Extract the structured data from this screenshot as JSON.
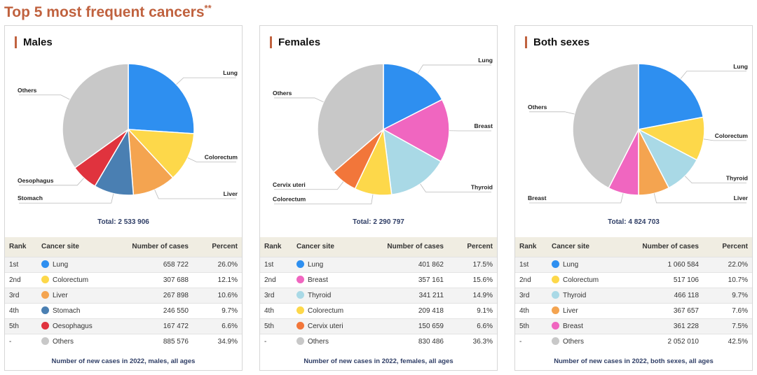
{
  "page": {
    "title": "Top 5 most frequent cancers",
    "title_mark": "**"
  },
  "table_headers": {
    "rank": "Rank",
    "site": "Cancer site",
    "cases": "Number of cases",
    "percent": "Percent"
  },
  "chart_data": [
    {
      "type": "pie",
      "title": "Males",
      "total_label": "Total: 2 533 906",
      "caption": "Number of new cases in 2022, males, all ages",
      "slices": [
        {
          "rank": "1st",
          "site": "Lung",
          "cases": "658 722",
          "percent": "26.0%",
          "value": 26.0,
          "color": "#2e8ff0"
        },
        {
          "rank": "2nd",
          "site": "Colorectum",
          "cases": "307 688",
          "percent": "12.1%",
          "value": 12.1,
          "color": "#fdd84a"
        },
        {
          "rank": "3rd",
          "site": "Liver",
          "cases": "267 898",
          "percent": "10.6%",
          "value": 10.6,
          "color": "#f4a450"
        },
        {
          "rank": "4th",
          "site": "Stomach",
          "cases": "246 550",
          "percent": "9.7%",
          "value": 9.7,
          "color": "#4a7fb2"
        },
        {
          "rank": "5th",
          "site": "Oesophagus",
          "cases": "167 472",
          "percent": "6.6%",
          "value": 6.6,
          "color": "#e0333e"
        },
        {
          "rank": "-",
          "site": "Others",
          "cases": "885 576",
          "percent": "34.9%",
          "value": 34.9,
          "color": "#c8c8c8"
        }
      ]
    },
    {
      "type": "pie",
      "title": "Females",
      "total_label": "Total: 2 290 797",
      "caption": "Number of new cases in 2022, females, all ages",
      "slices": [
        {
          "rank": "1st",
          "site": "Lung",
          "cases": "401 862",
          "percent": "17.5%",
          "value": 17.5,
          "color": "#2e8ff0"
        },
        {
          "rank": "2nd",
          "site": "Breast",
          "cases": "357 161",
          "percent": "15.6%",
          "value": 15.6,
          "color": "#f066c0"
        },
        {
          "rank": "3rd",
          "site": "Thyroid",
          "cases": "341 211",
          "percent": "14.9%",
          "value": 14.9,
          "color": "#a9d9e6"
        },
        {
          "rank": "4th",
          "site": "Colorectum",
          "cases": "209 418",
          "percent": "9.1%",
          "value": 9.1,
          "color": "#fdd84a"
        },
        {
          "rank": "5th",
          "site": "Cervix uteri",
          "cases": "150 659",
          "percent": "6.6%",
          "value": 6.6,
          "color": "#f2763a"
        },
        {
          "rank": "-",
          "site": "Others",
          "cases": "830 486",
          "percent": "36.3%",
          "value": 36.3,
          "color": "#c8c8c8"
        }
      ]
    },
    {
      "type": "pie",
      "title": "Both sexes",
      "total_label": "Total: 4 824 703",
      "caption": "Number of new cases in 2022, both sexes, all ages",
      "slices": [
        {
          "rank": "1st",
          "site": "Lung",
          "cases": "1 060 584",
          "percent": "22.0%",
          "value": 22.0,
          "color": "#2e8ff0"
        },
        {
          "rank": "2nd",
          "site": "Colorectum",
          "cases": "517 106",
          "percent": "10.7%",
          "value": 10.7,
          "color": "#fdd84a"
        },
        {
          "rank": "3rd",
          "site": "Thyroid",
          "cases": "466 118",
          "percent": "9.7%",
          "value": 9.7,
          "color": "#a9d9e6"
        },
        {
          "rank": "4th",
          "site": "Liver",
          "cases": "367 657",
          "percent": "7.6%",
          "value": 7.6,
          "color": "#f4a450"
        },
        {
          "rank": "5th",
          "site": "Breast",
          "cases": "361 228",
          "percent": "7.5%",
          "value": 7.5,
          "color": "#f066c0"
        },
        {
          "rank": "-",
          "site": "Others",
          "cases": "2 052 010",
          "percent": "42.5%",
          "value": 42.5,
          "color": "#c8c8c8"
        }
      ]
    }
  ]
}
